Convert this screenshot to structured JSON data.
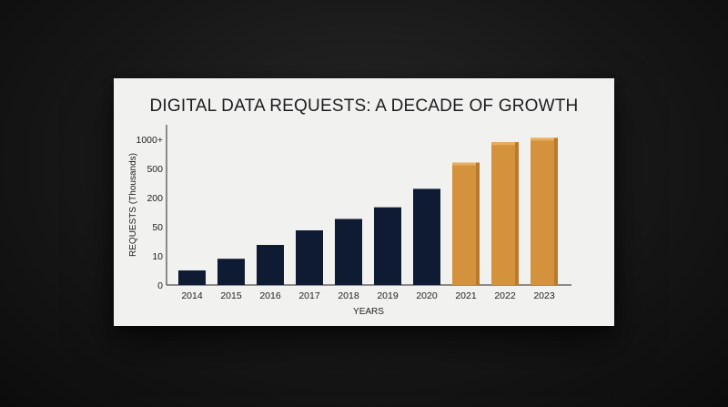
{
  "chart_data": {
    "type": "bar",
    "title": "DIGITAL DATA REQUESTS: A DECADE OF GROWTH",
    "xlabel": "YEARS",
    "ylabel": "REQUESTS (Thousands)",
    "y_tick_labels": [
      "0",
      "10",
      "50",
      "200",
      "500",
      "1000+"
    ],
    "categories": [
      "2014",
      "2015",
      "2016",
      "2017",
      "2018",
      "2019",
      "2020",
      "2021",
      "2022",
      "2023"
    ],
    "values": [
      5,
      9,
      25,
      45,
      90,
      150,
      290,
      600,
      950,
      1250
    ],
    "bar_colors": [
      "#0f1b33",
      "#0f1b33",
      "#0f1b33",
      "#0f1b33",
      "#0f1b33",
      "#0f1b33",
      "#0f1b33",
      "#d4923c",
      "#d4923c",
      "#d4923c"
    ],
    "grid": false,
    "legend": "none"
  }
}
